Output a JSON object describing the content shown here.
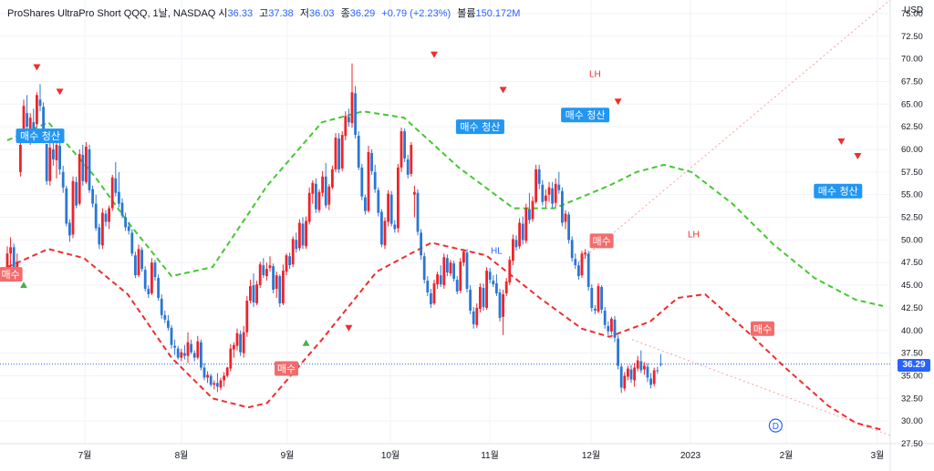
{
  "legend": {
    "title": "ProShares UltraPro Short QQQ, 1날, NASDAQ",
    "open_label": "시",
    "open": "36.33",
    "high_label": "고",
    "high": "37.38",
    "low_label": "저",
    "low": "36.03",
    "close_label": "종",
    "close": "36.29",
    "change": "+0.79 (+2.23%)",
    "volume_label": "볼륨",
    "volume": "150.172M"
  },
  "scale": {
    "currency": "USD",
    "last_price": "36.29"
  },
  "colors": {
    "up": "#ef232a",
    "down": "#2a77d4",
    "upper_band": "#43c82e",
    "lower_band": "#ef2d2d",
    "buy_signal": "#f26c6c",
    "exit_signal": "#2196f3",
    "trend_line": "#f4a0a0"
  },
  "chart_data": {
    "type": "candlestick",
    "ylim": [
      27.5,
      76.5
    ],
    "yticks": [
      27.5,
      30,
      32.5,
      35,
      37.5,
      40,
      42.5,
      45,
      47.5,
      50,
      52.5,
      55,
      57.5,
      60,
      62.5,
      65,
      67.5,
      70,
      72.5,
      75
    ],
    "ytick_labels": [
      "27.50",
      "30.00",
      "32.50",
      "35.00",
      "37.50",
      "40.00",
      "42.50",
      "45.00",
      "47.50",
      "50.00",
      "52.50",
      "55.00",
      "57.50",
      "60.00",
      "62.50",
      "65.00",
      "67.50",
      "70.00",
      "72.50",
      "75.00"
    ],
    "xtick_labels": [
      "7월",
      "8월",
      "9월",
      "10월",
      "11월",
      "12월",
      "2023",
      "2월",
      "3월"
    ],
    "bars": [
      [
        47.0,
        49.3,
        45.5,
        48.5
      ],
      [
        48.5,
        50.3,
        47.0,
        49.2
      ],
      [
        49.2,
        49.6,
        45.9,
        46.2
      ],
      [
        46.8,
        48.5,
        46.2,
        47.6
      ],
      [
        57.5,
        61.0,
        57.0,
        60.5
      ],
      [
        61.5,
        65.5,
        61.0,
        64.8
      ],
      [
        64.0,
        66.0,
        61.8,
        62.5
      ],
      [
        62.0,
        64.0,
        60.5,
        63.5
      ],
      [
        63.0,
        64.5,
        61.5,
        62.3
      ],
      [
        62.8,
        66.3,
        62.5,
        66.0
      ],
      [
        65.5,
        67.2,
        64.2,
        64.8
      ],
      [
        64.7,
        65.2,
        60.8,
        61.2
      ],
      [
        60.6,
        60.6,
        56.1,
        56.5
      ],
      [
        56.5,
        61.0,
        56.0,
        60.2
      ],
      [
        60.0,
        61.2,
        58.2,
        58.9
      ],
      [
        58.8,
        61.0,
        56.8,
        60.5
      ],
      [
        60.4,
        60.8,
        57.2,
        57.8
      ],
      [
        57.5,
        58.2,
        55.2,
        55.8
      ],
      [
        55.7,
        56.0,
        51.5,
        51.8
      ],
      [
        51.9,
        52.3,
        49.8,
        50.5
      ],
      [
        50.6,
        57.0,
        50.2,
        56.5
      ],
      [
        56.4,
        57.0,
        53.5,
        53.8
      ],
      [
        54.0,
        60.0,
        53.8,
        59.5
      ],
      [
        59.4,
        60.5,
        56.0,
        56.5
      ],
      [
        56.4,
        60.8,
        56.2,
        60.3
      ],
      [
        60.0,
        60.5,
        55.2,
        55.5
      ],
      [
        55.6,
        56.0,
        53.6,
        54.0
      ],
      [
        54.0,
        55.0,
        51.0,
        51.3
      ],
      [
        51.4,
        51.8,
        49.0,
        49.5
      ],
      [
        49.4,
        53.5,
        49.0,
        53.0
      ],
      [
        52.9,
        53.3,
        51.5,
        52.0
      ],
      [
        52.0,
        53.8,
        51.2,
        53.5
      ],
      [
        53.5,
        57.2,
        53.2,
        56.9
      ],
      [
        56.8,
        58.6,
        54.8,
        55.2
      ],
      [
        55.3,
        57.5,
        53.6,
        54.0
      ],
      [
        54.1,
        54.6,
        52.4,
        52.7
      ],
      [
        52.5,
        53.0,
        51.0,
        51.4
      ],
      [
        51.5,
        52.0,
        50.6,
        51.0
      ],
      [
        50.8,
        51.2,
        48.2,
        48.5
      ],
      [
        48.3,
        48.7,
        45.8,
        46.1
      ],
      [
        46.1,
        49.5,
        45.9,
        49.0
      ],
      [
        48.9,
        49.2,
        46.5,
        46.8
      ],
      [
        46.7,
        47.1,
        44.3,
        44.6
      ],
      [
        44.6,
        45.0,
        43.6,
        44.0
      ],
      [
        44.1,
        48.0,
        43.9,
        47.5
      ],
      [
        47.5,
        47.8,
        45.5,
        45.9
      ],
      [
        45.8,
        46.2,
        43.3,
        43.6
      ],
      [
        43.5,
        44.0,
        41.3,
        41.7
      ],
      [
        41.7,
        42.2,
        40.8,
        41.2
      ],
      [
        41.1,
        41.7,
        40.0,
        40.3
      ],
      [
        40.3,
        40.6,
        38.0,
        38.4
      ],
      [
        38.3,
        39.0,
        37.3,
        38.1
      ],
      [
        38.0,
        38.3,
        36.8,
        37.0
      ],
      [
        37.0,
        38.0,
        36.6,
        37.6
      ],
      [
        37.5,
        38.4,
        36.8,
        37.2
      ],
      [
        37.2,
        39.8,
        36.4,
        38.7
      ],
      [
        38.5,
        39.0,
        37.4,
        37.6
      ],
      [
        37.5,
        37.8,
        36.6,
        37.0
      ],
      [
        37.0,
        39.4,
        36.8,
        38.8
      ],
      [
        38.7,
        39.0,
        35.6,
        35.9
      ],
      [
        35.9,
        36.4,
        34.5,
        34.8
      ],
      [
        34.8,
        35.5,
        34.2,
        35.1
      ],
      [
        35.0,
        35.2,
        33.8,
        34.0
      ],
      [
        34.0,
        34.5,
        33.5,
        34.2
      ],
      [
        34.2,
        35.3,
        33.2,
        33.8
      ],
      [
        33.7,
        34.8,
        33.4,
        34.5
      ],
      [
        34.5,
        35.4,
        33.8,
        35.0
      ],
      [
        35.0,
        36.0,
        34.8,
        35.9
      ],
      [
        35.8,
        38.5,
        35.5,
        38.0
      ],
      [
        37.9,
        38.7,
        37.0,
        38.4
      ],
      [
        38.3,
        40.2,
        37.8,
        39.7
      ],
      [
        39.6,
        40.0,
        37.2,
        37.6
      ],
      [
        37.5,
        40.5,
        37.0,
        39.8
      ],
      [
        39.8,
        43.8,
        39.3,
        43.3
      ],
      [
        43.3,
        45.6,
        43.0,
        44.9
      ],
      [
        45.0,
        46.3,
        42.6,
        43.1
      ],
      [
        43.0,
        45.5,
        42.8,
        45.1
      ],
      [
        45.0,
        47.6,
        44.7,
        47.3
      ],
      [
        47.2,
        48.0,
        45.8,
        46.1
      ],
      [
        46.0,
        47.5,
        45.5,
        46.8
      ],
      [
        46.9,
        48.2,
        46.5,
        47.2
      ],
      [
        47.1,
        47.4,
        44.1,
        44.5
      ],
      [
        44.6,
        46.5,
        43.6,
        46.1
      ],
      [
        46.0,
        46.2,
        42.6,
        43.0
      ],
      [
        43.0,
        47.3,
        42.8,
        46.6
      ],
      [
        46.5,
        48.5,
        46.1,
        48.3
      ],
      [
        48.2,
        48.6,
        46.8,
        47.2
      ],
      [
        47.3,
        50.4,
        47.0,
        50.1
      ],
      [
        50.0,
        50.8,
        48.6,
        49.0
      ],
      [
        49.1,
        52.3,
        48.8,
        51.9
      ],
      [
        51.8,
        52.5,
        49.0,
        49.4
      ],
      [
        49.3,
        52.6,
        49.0,
        52.1
      ],
      [
        52.0,
        55.8,
        51.7,
        55.2
      ],
      [
        55.1,
        56.6,
        54.0,
        56.3
      ],
      [
        56.2,
        56.8,
        53.0,
        53.4
      ],
      [
        53.3,
        55.6,
        53.0,
        55.3
      ],
      [
        55.2,
        57.6,
        54.8,
        57.0
      ],
      [
        57.0,
        58.5,
        53.5,
        53.8
      ],
      [
        53.9,
        56.2,
        53.3,
        55.9
      ],
      [
        55.8,
        58.2,
        55.6,
        57.8
      ],
      [
        57.8,
        61.8,
        57.5,
        61.3
      ],
      [
        61.2,
        61.8,
        57.4,
        57.8
      ],
      [
        57.9,
        62.0,
        57.6,
        61.6
      ],
      [
        61.5,
        64.2,
        61.0,
        63.7
      ],
      [
        63.6,
        64.5,
        62.5,
        63.0
      ],
      [
        62.9,
        69.5,
        62.4,
        66.3
      ],
      [
        66.2,
        67.0,
        61.2,
        61.6
      ],
      [
        61.5,
        62.0,
        57.7,
        58.0
      ],
      [
        58.0,
        58.4,
        54.4,
        54.8
      ],
      [
        54.7,
        55.0,
        52.8,
        53.2
      ],
      [
        53.2,
        60.4,
        53.0,
        59.7
      ],
      [
        59.6,
        60.0,
        57.2,
        57.6
      ],
      [
        57.5,
        58.3,
        55.2,
        55.6
      ],
      [
        55.5,
        55.8,
        52.6,
        53.0
      ],
      [
        53.1,
        53.4,
        49.2,
        49.5
      ],
      [
        49.4,
        52.5,
        49.0,
        52.1
      ],
      [
        52.0,
        55.5,
        51.5,
        55.1
      ],
      [
        55.0,
        55.4,
        51.5,
        51.8
      ],
      [
        51.7,
        52.2,
        50.8,
        51.2
      ],
      [
        51.3,
        58.4,
        50.8,
        58.0
      ],
      [
        58.0,
        62.4,
        57.5,
        62.0
      ],
      [
        62.0,
        62.3,
        58.6,
        59.0
      ],
      [
        58.9,
        59.4,
        56.8,
        57.2
      ],
      [
        57.3,
        60.8,
        57.0,
        60.5
      ],
      [
        55.0,
        56.0,
        52.5,
        55.3
      ],
      [
        55.2,
        55.6,
        50.5,
        50.9
      ],
      [
        50.8,
        51.2,
        47.8,
        48.3
      ],
      [
        48.2,
        48.6,
        45.2,
        45.6
      ],
      [
        45.5,
        46.0,
        43.8,
        44.2
      ],
      [
        44.1,
        44.6,
        42.5,
        42.9
      ],
      [
        43.0,
        45.6,
        42.8,
        45.2
      ],
      [
        45.1,
        46.5,
        44.6,
        46.2
      ],
      [
        46.1,
        47.2,
        44.8,
        45.1
      ],
      [
        45.0,
        48.5,
        44.6,
        48.1
      ],
      [
        48.0,
        48.4,
        46.0,
        46.4
      ],
      [
        46.3,
        47.8,
        46.0,
        47.5
      ],
      [
        47.4,
        47.7,
        45.4,
        45.7
      ],
      [
        45.6,
        46.0,
        44.0,
        44.3
      ],
      [
        44.4,
        48.0,
        44.1,
        47.6
      ],
      [
        47.5,
        49.0,
        47.1,
        48.7
      ],
      [
        48.6,
        49.0,
        44.2,
        44.6
      ],
      [
        44.5,
        45.0,
        41.8,
        42.2
      ],
      [
        42.1,
        42.6,
        40.2,
        40.7
      ],
      [
        40.6,
        43.0,
        40.3,
        42.5
      ],
      [
        42.4,
        45.2,
        42.0,
        44.8
      ],
      [
        44.7,
        45.2,
        42.2,
        42.6
      ],
      [
        42.5,
        47.0,
        42.3,
        46.6
      ],
      [
        46.5,
        46.9,
        45.2,
        45.6
      ],
      [
        45.5,
        46.1,
        44.8,
        45.1
      ],
      [
        45.2,
        46.2,
        43.8,
        44.1
      ],
      [
        44.2,
        44.6,
        41.0,
        41.4
      ],
      [
        41.5,
        44.5,
        39.5,
        44.0
      ],
      [
        44.1,
        45.8,
        43.8,
        45.4
      ],
      [
        45.3,
        48.2,
        45.0,
        47.8
      ],
      [
        47.7,
        50.6,
        47.2,
        50.1
      ],
      [
        50.0,
        50.5,
        48.8,
        49.2
      ],
      [
        49.3,
        52.4,
        49.0,
        51.9
      ],
      [
        51.8,
        52.6,
        49.5,
        50.0
      ],
      [
        49.9,
        54.0,
        49.6,
        53.5
      ],
      [
        53.4,
        55.2,
        51.8,
        52.2
      ],
      [
        52.3,
        54.8,
        52.0,
        54.3
      ],
      [
        54.2,
        58.3,
        54.0,
        57.8
      ],
      [
        57.8,
        58.3,
        55.6,
        56.2
      ],
      [
        56.1,
        56.6,
        53.8,
        54.2
      ],
      [
        54.3,
        55.6,
        53.6,
        54.9
      ],
      [
        55.0,
        56.4,
        54.2,
        55.8
      ],
      [
        55.7,
        56.4,
        53.5,
        54.0
      ],
      [
        54.1,
        56.8,
        53.6,
        56.2
      ],
      [
        56.1,
        57.5,
        55.1,
        55.5
      ],
      [
        55.4,
        55.8,
        51.5,
        51.9
      ],
      [
        52.0,
        53.3,
        51.2,
        52.9
      ],
      [
        52.8,
        53.1,
        49.6,
        50.0
      ],
      [
        50.0,
        50.4,
        47.6,
        48.0
      ],
      [
        47.9,
        48.5,
        46.8,
        47.2
      ],
      [
        47.2,
        47.6,
        45.6,
        46.0
      ],
      [
        46.1,
        48.8,
        45.8,
        48.5
      ],
      [
        48.4,
        49.0,
        47.9,
        48.6
      ],
      [
        48.5,
        48.8,
        44.4,
        44.8
      ],
      [
        44.7,
        45.1,
        42.1,
        42.5
      ],
      [
        42.4,
        42.8,
        41.8,
        42.2
      ],
      [
        42.1,
        45.2,
        41.9,
        44.9
      ],
      [
        44.8,
        45.0,
        41.9,
        42.3
      ],
      [
        42.2,
        42.6,
        40.2,
        40.6
      ],
      [
        40.5,
        41.0,
        39.5,
        39.9
      ],
      [
        39.9,
        41.5,
        39.6,
        41.3
      ],
      [
        41.2,
        41.6,
        38.7,
        39.2
      ],
      [
        39.1,
        39.5,
        35.7,
        36.1
      ],
      [
        36.0,
        36.4,
        33.1,
        33.7
      ],
      [
        33.6,
        35.4,
        33.3,
        35.0
      ],
      [
        34.9,
        36.1,
        34.5,
        35.8
      ],
      [
        35.7,
        36.2,
        34.2,
        34.6
      ],
      [
        34.5,
        36.4,
        33.8,
        35.9
      ],
      [
        35.8,
        37.2,
        35.5,
        36.7
      ],
      [
        36.6,
        37.8,
        35.3,
        35.6
      ],
      [
        35.7,
        36.5,
        35.1,
        36.1
      ],
      [
        36.0,
        36.4,
        34.3,
        34.8
      ],
      [
        34.7,
        35.3,
        33.6,
        34.0
      ],
      [
        34.1,
        35.9,
        33.8,
        35.6
      ],
      [
        35.6,
        36.0,
        35.2,
        35.5
      ],
      [
        36.33,
        37.38,
        36.03,
        36.29
      ]
    ],
    "upper_band": [
      [
        0,
        61.0
      ],
      [
        0.15,
        63.0
      ],
      [
        0.32,
        57.0
      ],
      [
        0.44,
        52.0
      ],
      [
        0.6,
        46.0
      ],
      [
        0.75,
        47.0
      ],
      [
        0.95,
        56.0
      ],
      [
        1.15,
        63.0
      ],
      [
        1.3,
        64.2
      ],
      [
        1.45,
        63.5
      ],
      [
        1.65,
        58.0
      ],
      [
        1.85,
        53.5
      ],
      [
        2.0,
        53.5
      ],
      [
        2.2,
        56.0
      ],
      [
        2.3,
        57.5
      ],
      [
        2.4,
        58.3
      ],
      [
        2.5,
        57.5
      ],
      [
        2.65,
        54.0
      ],
      [
        2.8,
        49.5
      ],
      [
        2.95,
        45.8
      ],
      [
        3.1,
        43.4
      ],
      [
        3.2,
        42.7
      ]
    ],
    "lower_band": [
      [
        0,
        47.0
      ],
      [
        0.15,
        49.0
      ],
      [
        0.28,
        48.0
      ],
      [
        0.44,
        44.0
      ],
      [
        0.6,
        37.0
      ],
      [
        0.75,
        32.5
      ],
      [
        0.88,
        31.5
      ],
      [
        0.95,
        32.0
      ],
      [
        1.15,
        39.0
      ],
      [
        1.35,
        46.5
      ],
      [
        1.55,
        49.7
      ],
      [
        1.75,
        48.3
      ],
      [
        1.95,
        43.5
      ],
      [
        2.1,
        40.2
      ],
      [
        2.2,
        39.3
      ],
      [
        2.35,
        41.0
      ],
      [
        2.45,
        43.6
      ],
      [
        2.55,
        44.0
      ],
      [
        2.7,
        40.0
      ],
      [
        2.85,
        35.7
      ],
      [
        3.0,
        31.7
      ],
      [
        3.1,
        29.8
      ],
      [
        3.2,
        29.0
      ]
    ],
    "annotations": [
      {
        "text": "매수",
        "kind": "buy",
        "bar": 1,
        "price": 46.2
      },
      {
        "text": "매수 청산",
        "kind": "exit",
        "bar": 10,
        "price": 61.5
      },
      {
        "text": "매수",
        "kind": "buy",
        "bar": 85,
        "price": 35.8
      },
      {
        "text": "매수 청산",
        "kind": "exit",
        "bar": 144,
        "price": 62.5
      },
      {
        "text": "HL",
        "kind": "pivot-low",
        "bar": 149,
        "price": 48.5
      },
      {
        "text": "매수 청산",
        "kind": "exit",
        "bar": 176,
        "price": 63.8
      },
      {
        "text": "LH",
        "kind": "pivot-high",
        "bar": 179,
        "price": 68.0
      },
      {
        "text": "매수",
        "kind": "buy",
        "bar": 181,
        "price": 49.9
      },
      {
        "text": "LH",
        "kind": "pivot-high",
        "bar": 209,
        "price": 50.3
      },
      {
        "text": "매수",
        "kind": "buy",
        "bar": 230,
        "price": 40.2
      },
      {
        "text": "매수 청산",
        "kind": "exit",
        "bar": 253,
        "price": 55.4
      },
      {
        "text": "D",
        "kind": "dividend",
        "bar": 234,
        "price": 29.5
      }
    ]
  }
}
